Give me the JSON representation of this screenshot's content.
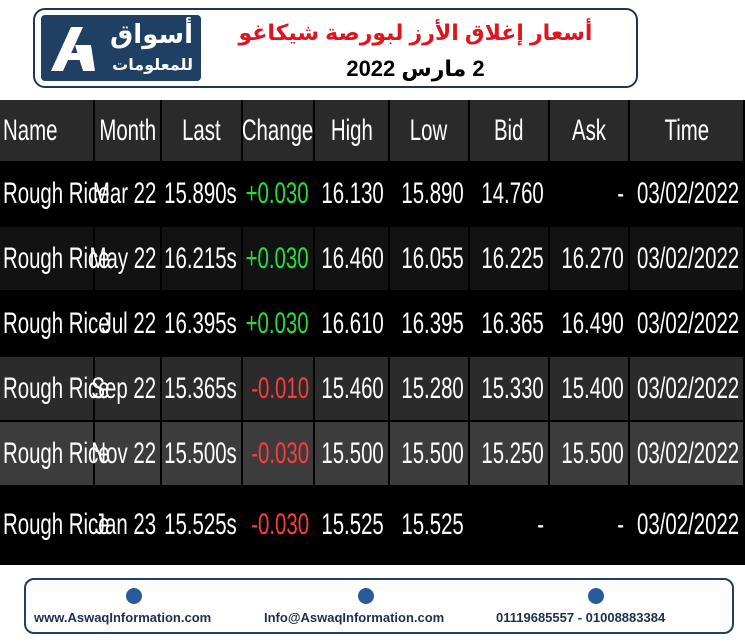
{
  "header": {
    "logo_ar": "أسواق",
    "logo_sub": "للمعلومات",
    "title": "أسعار إغلاق الأرز لبورصة شيكاغو",
    "date": "2 مارس 2022"
  },
  "table": {
    "columns": [
      "Name",
      "Month",
      "Last",
      "Change",
      "High",
      "Low",
      "Bid",
      "Ask",
      "Time"
    ],
    "rows": [
      [
        "Rough Rice",
        "Mar 22",
        "15.890s",
        "+0.030",
        "16.130",
        "15.890",
        "14.760",
        "-",
        "03/02/2022"
      ],
      [
        "Rough Rice",
        "May 22",
        "16.215s",
        "+0.030",
        "16.460",
        "16.055",
        "16.225",
        "16.270",
        "03/02/2022"
      ],
      [
        "Rough Rice",
        "Jul 22",
        "16.395s",
        "+0.030",
        "16.610",
        "16.395",
        "16.365",
        "16.490",
        "03/02/2022"
      ],
      [
        "Rough Rice",
        "Sep 22",
        "15.365s",
        "-0.010",
        "15.460",
        "15.280",
        "15.330",
        "15.400",
        "03/02/2022"
      ],
      [
        "Rough Rice",
        "Nov 22",
        "15.500s",
        "-0.030",
        "15.500",
        "15.500",
        "15.250",
        "15.500",
        "03/02/2022"
      ],
      [
        "Rough Rice",
        "Jan 23",
        "15.525s",
        "-0.030",
        "15.525",
        "15.525",
        "-",
        "-",
        "03/02/2022"
      ]
    ]
  },
  "footer": {
    "website": "www.AswaqInformation.com",
    "email": "Info@AswaqInformation.com",
    "phones": "01119685557 - 01008883384"
  }
}
